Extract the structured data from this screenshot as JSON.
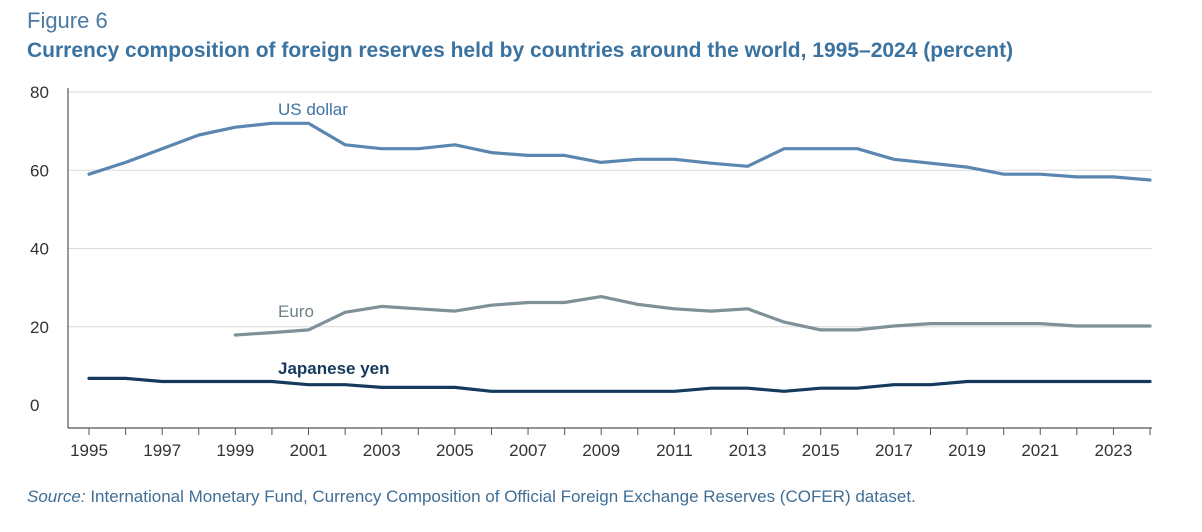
{
  "figure": {
    "label": "Figure 6",
    "title": "Currency composition of foreign reserves held by countries around the world, 1995–2024 (percent)"
  },
  "source": {
    "label": "Source:",
    "text": "International Monetary Fund, Currency Composition of Official Foreign Exchange Reserves (COFER) dataset."
  },
  "chart_data": {
    "type": "line",
    "title": "Currency composition of foreign reserves held by countries around the world, 1995–2024 (percent)",
    "xlabel": "",
    "ylabel": "",
    "xlim": [
      1995,
      2024
    ],
    "ylim": [
      0,
      80
    ],
    "y_ticks": [
      0,
      20,
      40,
      60,
      80
    ],
    "x_tick_labels": [
      "1995",
      "1997",
      "1999",
      "2001",
      "2003",
      "2005",
      "2007",
      "2009",
      "2011",
      "2013",
      "2015",
      "2017",
      "2019",
      "2021",
      "2023"
    ],
    "grid": "horizontal",
    "legend": "inline labels",
    "series": [
      {
        "name": "US dollar",
        "color": "#5a86b0",
        "label_color": "#3f72a3",
        "label_bold": false,
        "x": [
          1995,
          1996,
          1997,
          1998,
          1999,
          2000,
          2001,
          2002,
          2003,
          2004,
          2005,
          2006,
          2007,
          2008,
          2009,
          2010,
          2011,
          2012,
          2013,
          2014,
          2015,
          2016,
          2017,
          2018,
          2019,
          2020,
          2021,
          2022,
          2023,
          2024
        ],
        "values": [
          59,
          62,
          65.5,
          69,
          71,
          72,
          72,
          66.5,
          65.5,
          65.5,
          66.5,
          64.5,
          63.8,
          63.8,
          62,
          62.8,
          62.8,
          61.8,
          61,
          65.5,
          65.5,
          65.5,
          62.8,
          61.8,
          60.8,
          59,
          59,
          58.3,
          58.3,
          57.5
        ]
      },
      {
        "name": "Euro",
        "color": "#7f9098",
        "label_color": "#6f8088",
        "label_bold": false,
        "x": [
          1999,
          2000,
          2001,
          2002,
          2003,
          2004,
          2005,
          2006,
          2007,
          2008,
          2009,
          2010,
          2011,
          2012,
          2013,
          2014,
          2015,
          2016,
          2017,
          2018,
          2019,
          2020,
          2021,
          2022,
          2023,
          2024
        ],
        "values": [
          17.9,
          18.5,
          19.2,
          23.7,
          25.2,
          24.6,
          24.0,
          25.5,
          26.2,
          26.2,
          27.7,
          25.7,
          24.6,
          24.0,
          24.6,
          21.2,
          19.2,
          19.2,
          20.2,
          20.8,
          20.8,
          20.8,
          20.8,
          20.2,
          20.2,
          20.2
        ]
      },
      {
        "name": "Japanese yen",
        "color": "#163a5e",
        "label_color": "#163a5e",
        "label_bold": true,
        "x": [
          1995,
          1996,
          1997,
          1998,
          1999,
          2000,
          2001,
          2002,
          2003,
          2004,
          2005,
          2006,
          2007,
          2008,
          2009,
          2010,
          2011,
          2012,
          2013,
          2014,
          2015,
          2016,
          2017,
          2018,
          2019,
          2020,
          2021,
          2022,
          2023,
          2024
        ],
        "values": [
          6.8,
          6.8,
          6,
          6,
          6,
          6,
          5.2,
          5.2,
          4.5,
          4.5,
          4.5,
          3.5,
          3.5,
          3.5,
          3.5,
          3.5,
          3.5,
          4.3,
          4.3,
          3.5,
          4.3,
          4.3,
          5.2,
          5.2,
          6,
          6,
          6,
          6,
          6,
          6
        ]
      }
    ]
  }
}
